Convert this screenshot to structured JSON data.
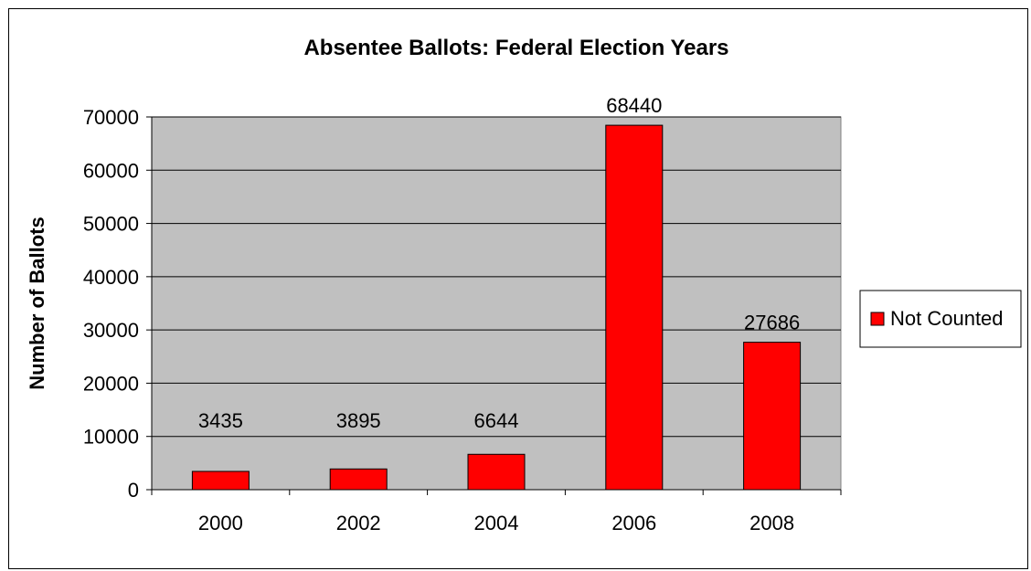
{
  "chart_data": {
    "type": "bar",
    "title": "Absentee Ballots: Federal Election Years",
    "xlabel": "",
    "ylabel": "Number of Ballots",
    "categories": [
      "2000",
      "2002",
      "2004",
      "2006",
      "2008"
    ],
    "series": [
      {
        "name": "Not Counted",
        "values": [
          3435,
          3895,
          6644,
          68440,
          27686
        ]
      }
    ],
    "ylim": [
      0,
      70000
    ],
    "yticks": [
      0,
      10000,
      20000,
      30000,
      40000,
      50000,
      60000,
      70000
    ],
    "grid": true,
    "legend": "right",
    "colors": {
      "bar": "#ff0000",
      "plot_background": "#c0c0c0",
      "gridline": "#000000"
    }
  }
}
